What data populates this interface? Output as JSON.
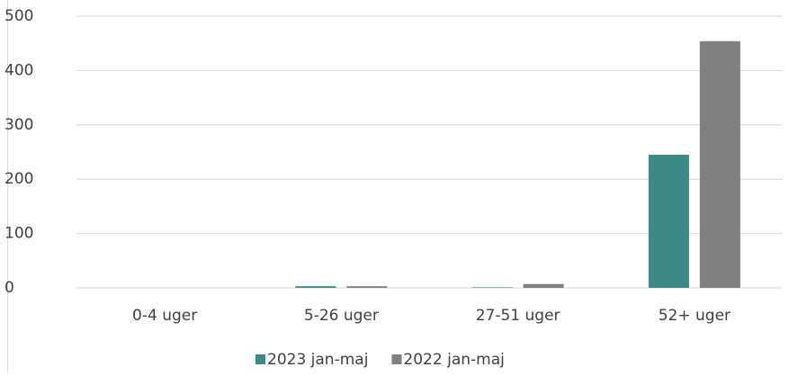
{
  "chart_data": {
    "type": "bar",
    "categories": [
      "0-4 uger",
      "5-26 uger",
      "27-51 uger",
      "52+ uger"
    ],
    "series": [
      {
        "name": "2023 jan-maj",
        "color": "#3b8a85",
        "values": [
          0,
          3,
          1,
          245
        ]
      },
      {
        "name": "2022 jan-maj",
        "color": "#808080",
        "values": [
          0,
          3,
          7,
          454
        ]
      }
    ],
    "ylim": [
      0,
      500
    ],
    "yticks": [
      0,
      100,
      200,
      300,
      400,
      500
    ],
    "grid": true,
    "legend": "bottom"
  }
}
